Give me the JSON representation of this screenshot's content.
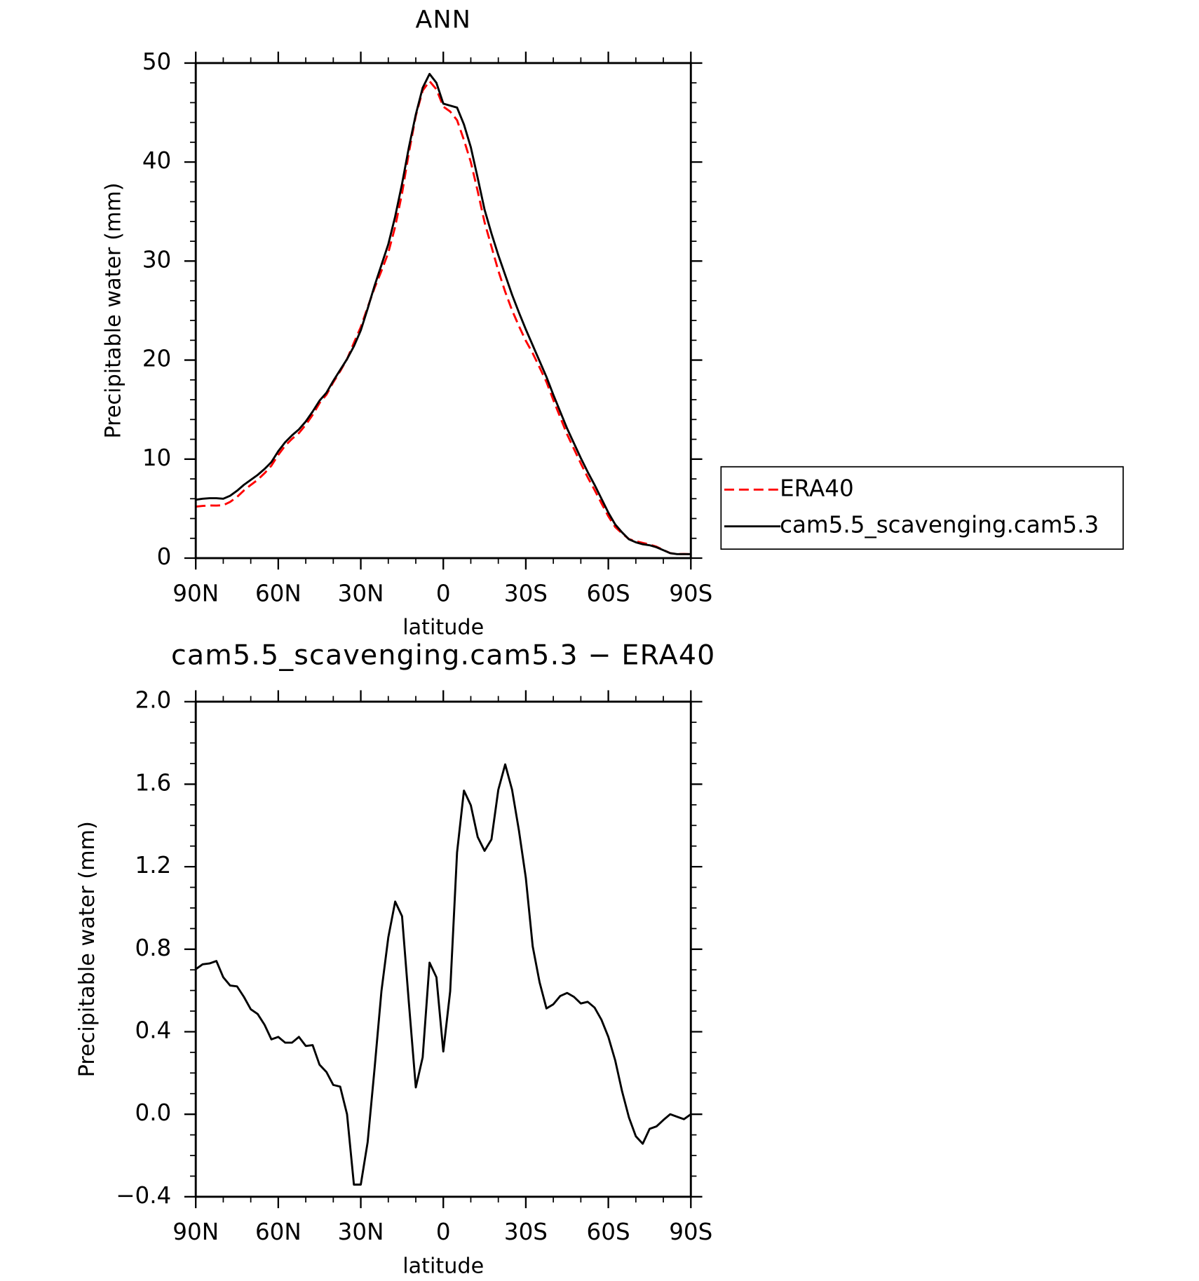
{
  "chart_data": [
    {
      "type": "line",
      "title": "ANN",
      "xlabel": "latitude",
      "ylabel": "Precipitable water (mm)",
      "x": [
        90,
        87.5,
        85,
        82.5,
        80,
        77.5,
        75,
        72.5,
        70,
        67.5,
        65,
        62.5,
        60,
        57.5,
        55,
        52.5,
        50,
        47.5,
        45,
        42.5,
        40,
        37.5,
        35,
        32.5,
        30,
        27.5,
        25,
        22.5,
        20,
        17.5,
        15,
        12.5,
        10,
        7.5,
        5,
        2.5,
        0,
        -2.5,
        -5,
        -7.5,
        -10,
        -12.5,
        -15,
        -17.5,
        -20,
        -22.5,
        -25,
        -27.5,
        -30,
        -32.5,
        -35,
        -37.5,
        -40,
        -42.5,
        -45,
        -47.5,
        -50,
        -52.5,
        -55,
        -57.5,
        -60,
        -62.5,
        -65,
        -67.5,
        -70,
        -72.5,
        -75,
        -77.5,
        -80,
        -82.5,
        -85,
        -87.5,
        -90
      ],
      "xlim": [
        90,
        -90
      ],
      "xticks": [
        {
          "value": 90,
          "label": "90N"
        },
        {
          "value": 60,
          "label": "60N"
        },
        {
          "value": 30,
          "label": "30N"
        },
        0,
        {
          "value": -30,
          "label": "30S"
        },
        {
          "value": -60,
          "label": "60S"
        },
        {
          "value": -90,
          "label": "90S"
        }
      ],
      "ylim": [
        0,
        50
      ],
      "yticks": [
        0,
        10,
        20,
        30,
        40,
        50
      ],
      "legend": "right",
      "series": [
        {
          "name": "ERA40",
          "color": "#ff0000",
          "dashed": true,
          "values": [
            5.2,
            5.27,
            5.32,
            5.31,
            5.34,
            5.68,
            6.18,
            6.83,
            7.39,
            7.91,
            8.57,
            9.34,
            10.43,
            11.35,
            12.05,
            12.63,
            13.47,
            14.47,
            15.66,
            16.5,
            17.76,
            18.87,
            20.1,
            21.74,
            23.34,
            25.34,
            27.28,
            29.0,
            30.84,
            33.47,
            36.84,
            40.96,
            44.67,
            47.22,
            48.17,
            47.34,
            45.6,
            45.1,
            44.23,
            42.23,
            40.0,
            37.06,
            33.92,
            31.47,
            29.03,
            26.9,
            25.03,
            23.43,
            21.95,
            20.69,
            19.26,
            17.79,
            15.97,
            14.23,
            12.51,
            11.03,
            9.56,
            8.16,
            6.88,
            5.54,
            4.23,
            3.14,
            2.49,
            1.92,
            1.71,
            1.54,
            1.37,
            1.16,
            0.83,
            0.5,
            0.41,
            0.42,
            0.4
          ]
        },
        {
          "name": "cam5.5_scavenging.cam5.3",
          "color": "#000000",
          "dashed": false,
          "values": [
            5.9,
            6.0,
            6.05,
            6.05,
            6.0,
            6.3,
            6.8,
            7.4,
            7.9,
            8.4,
            9.0,
            9.7,
            10.8,
            11.7,
            12.4,
            13.0,
            13.8,
            14.8,
            15.9,
            16.7,
            17.9,
            19.0,
            20.1,
            21.4,
            23.0,
            25.2,
            27.5,
            29.6,
            31.7,
            34.5,
            37.8,
            41.5,
            44.8,
            47.5,
            48.9,
            48.0,
            45.9,
            45.7,
            45.5,
            43.8,
            41.5,
            38.4,
            35.2,
            32.8,
            30.6,
            28.6,
            26.6,
            24.8,
            23.1,
            21.5,
            19.9,
            18.3,
            16.5,
            14.8,
            13.1,
            11.6,
            10.1,
            8.7,
            7.4,
            6.0,
            4.6,
            3.4,
            2.6,
            1.9,
            1.6,
            1.4,
            1.3,
            1.1,
            0.8,
            0.5,
            0.4,
            0.4,
            0.4
          ]
        }
      ]
    },
    {
      "type": "line",
      "title": "cam5.5_scavenging.cam5.3 − ERA40",
      "xlabel": "latitude",
      "ylabel": "Precipitable water (mm)",
      "x": [
        90,
        87.5,
        85,
        82.5,
        80,
        77.5,
        75,
        72.5,
        70,
        67.5,
        65,
        62.5,
        60,
        57.5,
        55,
        52.5,
        50,
        47.5,
        45,
        42.5,
        40,
        37.5,
        35,
        32.5,
        30,
        27.5,
        25,
        22.5,
        20,
        17.5,
        15,
        12.5,
        10,
        7.5,
        5,
        2.5,
        0,
        -2.5,
        -5,
        -7.5,
        -10,
        -12.5,
        -15,
        -17.5,
        -20,
        -22.5,
        -25,
        -27.5,
        -30,
        -32.5,
        -35,
        -37.5,
        -40,
        -42.5,
        -45,
        -47.5,
        -50,
        -52.5,
        -55,
        -57.5,
        -60,
        -62.5,
        -65,
        -67.5,
        -70,
        -72.5,
        -75,
        -77.5,
        -80,
        -82.5,
        -85,
        -87.5,
        -90
      ],
      "xlim": [
        90,
        -90
      ],
      "xticks": [
        {
          "value": 90,
          "label": "90N"
        },
        {
          "value": 60,
          "label": "60N"
        },
        {
          "value": 30,
          "label": "30N"
        },
        0,
        {
          "value": -30,
          "label": "30S"
        },
        {
          "value": -60,
          "label": "60S"
        },
        {
          "value": -90,
          "label": "90S"
        }
      ],
      "ylim": [
        -0.4,
        2.0
      ],
      "yticks": [
        {
          "value": -0.4,
          "label": "−0.4"
        },
        {
          "value": 0,
          "label": "0.0"
        },
        0.4,
        0.8,
        1.2,
        1.6,
        {
          "value": 2,
          "label": "2.0"
        }
      ],
      "series": [
        {
          "color": "#000000",
          "dashed": false,
          "values": [
            0.703,
            0.727,
            0.731,
            0.743,
            0.664,
            0.624,
            0.62,
            0.569,
            0.509,
            0.486,
            0.434,
            0.363,
            0.375,
            0.347,
            0.347,
            0.375,
            0.331,
            0.335,
            0.24,
            0.205,
            0.142,
            0.134,
            0.0,
            -0.341,
            -0.341,
            -0.135,
            0.22,
            0.596,
            0.857,
            1.031,
            0.96,
            0.537,
            0.13,
            0.276,
            0.735,
            0.664,
            0.304,
            0.596,
            1.269,
            1.569,
            1.498,
            1.344,
            1.277,
            1.332,
            1.573,
            1.696,
            1.573,
            1.375,
            1.146,
            0.814,
            0.64,
            0.513,
            0.533,
            0.573,
            0.588,
            0.569,
            0.537,
            0.545,
            0.517,
            0.458,
            0.375,
            0.261,
            0.111,
            -0.016,
            -0.107,
            -0.143,
            -0.071,
            -0.059,
            -0.028,
            0.0,
            -0.012,
            -0.024,
            0.0
          ]
        }
      ]
    }
  ]
}
